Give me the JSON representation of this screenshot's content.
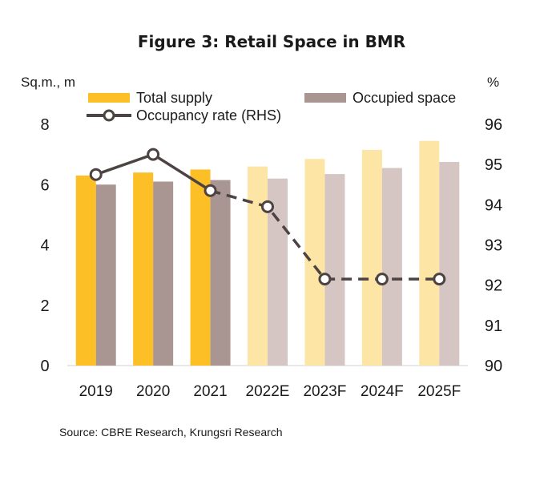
{
  "chart_data": {
    "type": "bar",
    "title": "Figure 3: Retail Space in BMR",
    "y_left_unit": "Sq.m., m",
    "y_right_unit": "%",
    "categories": [
      "2019",
      "2020",
      "2021",
      "2022E",
      "2023F",
      "2024F",
      "2025F"
    ],
    "forecast_start_index": 3,
    "ylim_left": [
      0,
      8
    ],
    "yticks_left": [
      "0",
      "2",
      "4",
      "6",
      "8"
    ],
    "ylim_right": [
      90,
      96
    ],
    "yticks_right": [
      "90",
      "91",
      "92",
      "93",
      "94",
      "95",
      "96"
    ],
    "series": [
      {
        "name": "Total supply",
        "kind": "bar",
        "axis": "left",
        "values": [
          6.3,
          6.4,
          6.5,
          6.6,
          6.85,
          7.15,
          7.45
        ],
        "color": "#FDBF26",
        "forecast_color": "#FDE5A5"
      },
      {
        "name": "Occupied space",
        "kind": "bar",
        "axis": "left",
        "values": [
          6.0,
          6.1,
          6.15,
          6.2,
          6.35,
          6.55,
          6.75
        ],
        "color": "#A99693",
        "forecast_color": "#D5C6C4"
      },
      {
        "name": "Occupancy rate (RHS)",
        "kind": "line",
        "axis": "right",
        "values": [
          94.75,
          95.25,
          94.35,
          93.95,
          92.15,
          92.15,
          92.15
        ],
        "color": "#4D4343",
        "forecast_from_index": 2
      }
    ],
    "source": "Source: CBRE Research, Krungsri Research"
  }
}
